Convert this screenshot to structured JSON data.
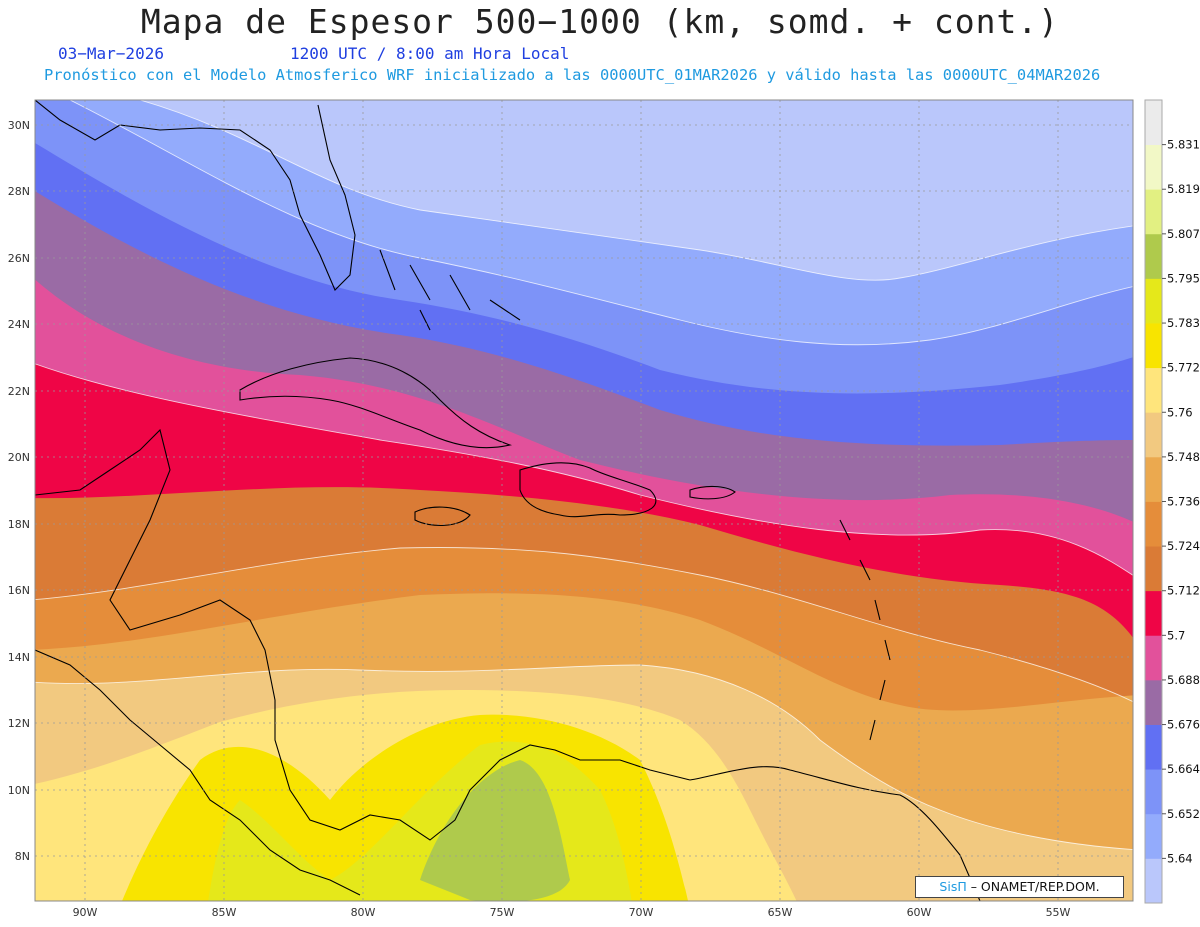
{
  "title": "Mapa de Espesor 500−1000 (km, somd. + cont.)",
  "date": "03−Mar−2026",
  "time": "1200 UTC / 8:00 am Hora Local",
  "description": "Pronóstico con el Modelo Atmosferico WRF inicializado a las 0000UTC_01MAR2026 y válido hasta las  0000UTC_04MAR2026",
  "watermark": {
    "logo": "SisΠ",
    "text": " – ONAMET/REP.DOM."
  },
  "lat_labels": [
    "30N",
    "28N",
    "26N",
    "24N",
    "22N",
    "20N",
    "18N",
    "16N",
    "14N",
    "12N",
    "10N",
    "8N"
  ],
  "lon_labels": [
    "90W",
    "85W",
    "80W",
    "75W",
    "70W",
    "65W",
    "60W",
    "55W"
  ],
  "colorbar": {
    "levels": [
      "5.64",
      "5.652",
      "5.664",
      "5.676",
      "5.688",
      "5.7",
      "5.712",
      "5.724",
      "5.736",
      "5.748",
      "5.76",
      "5.772",
      "5.783",
      "5.795",
      "5.807",
      "5.819",
      "5.831"
    ],
    "colors": [
      "#bac7fb",
      "#93abfc",
      "#7d93f8",
      "#6170f3",
      "#9a6ba5",
      "#e2519b",
      "#ef0546",
      "#da7b36",
      "#e58d3a",
      "#eba94f",
      "#f2c980",
      "#ffe57c",
      "#f8e400",
      "#e5e81a",
      "#afca4c",
      "#e2f082",
      "#f2f8c6",
      "#ebebeb"
    ]
  }
}
